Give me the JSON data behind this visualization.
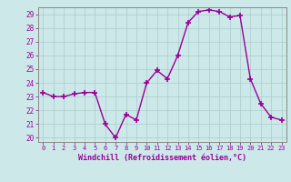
{
  "x": [
    0,
    1,
    2,
    3,
    4,
    5,
    6,
    7,
    8,
    9,
    10,
    11,
    12,
    13,
    14,
    15,
    16,
    17,
    18,
    19,
    20,
    21,
    22,
    23
  ],
  "y": [
    23.3,
    23.0,
    23.0,
    23.2,
    23.3,
    23.3,
    21.0,
    20.0,
    21.7,
    21.3,
    24.0,
    24.9,
    24.3,
    26.0,
    28.4,
    29.2,
    29.3,
    29.2,
    28.8,
    28.9,
    24.3,
    22.5,
    21.5,
    21.3
  ],
  "line_color": "#990099",
  "marker": "+",
  "bg_color": "#cce8e8",
  "grid_color": "#aacccc",
  "xlabel": "Windchill (Refroidissement éolien,°C)",
  "xlabel_color": "#990099",
  "tick_color": "#990099",
  "ylim": [
    19.7,
    29.5
  ],
  "yticks": [
    20,
    21,
    22,
    23,
    24,
    25,
    26,
    27,
    28,
    29
  ],
  "xlim": [
    -0.5,
    23.5
  ],
  "xticks": [
    0,
    1,
    2,
    3,
    4,
    5,
    6,
    7,
    8,
    9,
    10,
    11,
    12,
    13,
    14,
    15,
    16,
    17,
    18,
    19,
    20,
    21,
    22,
    23
  ],
  "spine_color": "#888888",
  "fig_width": 3.2,
  "fig_height": 2.0,
  "dpi": 100
}
